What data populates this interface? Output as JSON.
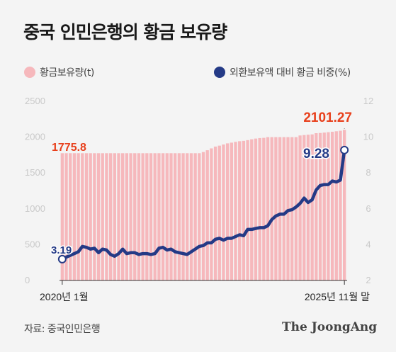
{
  "title": "중국 인민은행의 황금 보유량",
  "legend": {
    "gold": "황금보유량(t)",
    "ratio": "외환보유액 대비 황금 비중(%)"
  },
  "source": "자료: 중국인민은행",
  "brand": "The JoongAng",
  "colors": {
    "gold": "#f6b8bc",
    "ratio": "#243a86",
    "highlight": "#e8401c",
    "tick": "#c9c9c9"
  },
  "chart_data": {
    "type": "bar",
    "x_tick_labels": {
      "start": "2020년 1월",
      "end": "2025년 11월 말"
    },
    "x": [
      "2020-01",
      "2020-02",
      "2020-03",
      "2020-04",
      "2020-05",
      "2020-06",
      "2020-07",
      "2020-08",
      "2020-09",
      "2020-10",
      "2020-11",
      "2020-12",
      "2021-01",
      "2021-02",
      "2021-03",
      "2021-04",
      "2021-05",
      "2021-06",
      "2021-07",
      "2021-08",
      "2021-09",
      "2021-10",
      "2021-11",
      "2021-12",
      "2022-01",
      "2022-02",
      "2022-03",
      "2022-04",
      "2022-05",
      "2022-06",
      "2022-07",
      "2022-08",
      "2022-09",
      "2022-10",
      "2022-11",
      "2022-12",
      "2023-01",
      "2023-02",
      "2023-03",
      "2023-04",
      "2023-05",
      "2023-06",
      "2023-07",
      "2023-08",
      "2023-09",
      "2023-10",
      "2023-11",
      "2023-12",
      "2024-01",
      "2024-02",
      "2024-03",
      "2024-04",
      "2024-05",
      "2024-06",
      "2024-07",
      "2024-08",
      "2024-09",
      "2024-10",
      "2024-11",
      "2024-12",
      "2025-01",
      "2025-02",
      "2025-03",
      "2025-04",
      "2025-05",
      "2025-06",
      "2025-07",
      "2025-08",
      "2025-09",
      "2025-10",
      "2025-11"
    ],
    "series": [
      {
        "name": "황금보유량(t)",
        "axis": "left",
        "values": [
          1775.8,
          1775.8,
          1775.8,
          1775.8,
          1775.8,
          1775.8,
          1775.8,
          1775.8,
          1775.8,
          1775.8,
          1775.8,
          1775.8,
          1775.8,
          1775.8,
          1775.8,
          1775.8,
          1775.8,
          1775.8,
          1775.8,
          1775.8,
          1775.8,
          1775.8,
          1775.8,
          1775.8,
          1775.8,
          1775.8,
          1775.8,
          1775.8,
          1775.8,
          1775.8,
          1775.8,
          1775.8,
          1775.8,
          1775.8,
          1775.8,
          1792,
          1817,
          1843,
          1868,
          1881,
          1897,
          1913,
          1923,
          1934,
          1943,
          1948,
          1958,
          1970,
          1980,
          1987,
          1990,
          2000,
          2000,
          2000,
          2000,
          2000,
          2000,
          2000,
          2000,
          2023,
          2029,
          2034,
          2038,
          2055,
          2058,
          2063,
          2069,
          2075,
          2082,
          2089,
          2101.27
        ]
      },
      {
        "name": "외환보유액 대비 황금 비중(%)",
        "axis": "right",
        "values": [
          3.19,
          3.3,
          3.4,
          3.5,
          3.6,
          3.9,
          3.85,
          3.75,
          3.8,
          3.55,
          3.75,
          3.7,
          3.45,
          3.35,
          3.5,
          3.75,
          3.5,
          3.55,
          3.55,
          3.45,
          3.5,
          3.5,
          3.45,
          3.5,
          3.8,
          3.85,
          3.7,
          3.75,
          3.6,
          3.55,
          3.5,
          3.45,
          3.6,
          3.75,
          3.9,
          3.95,
          4.1,
          4.1,
          4.3,
          4.35,
          4.25,
          4.35,
          4.35,
          4.45,
          4.55,
          4.5,
          4.85,
          4.85,
          4.9,
          4.95,
          4.95,
          5.05,
          5.4,
          5.6,
          5.7,
          5.7,
          5.9,
          5.95,
          6.1,
          6.3,
          6.6,
          6.35,
          6.5,
          7.05,
          7.3,
          7.35,
          7.35,
          7.55,
          7.5,
          7.6,
          9.28
        ]
      }
    ],
    "left_axis": {
      "ticks": [
        0,
        500,
        1000,
        1500,
        2000,
        2500
      ],
      "ylim": [
        0,
        2500
      ]
    },
    "right_axis": {
      "ticks": [
        2,
        4,
        6,
        8,
        10,
        12
      ],
      "ylim": [
        2,
        12
      ]
    },
    "annotations": {
      "gold_start": "1775.8",
      "gold_end": "2101.27",
      "ratio_start": "3.19",
      "ratio_end": "9.28"
    },
    "grid": false
  }
}
